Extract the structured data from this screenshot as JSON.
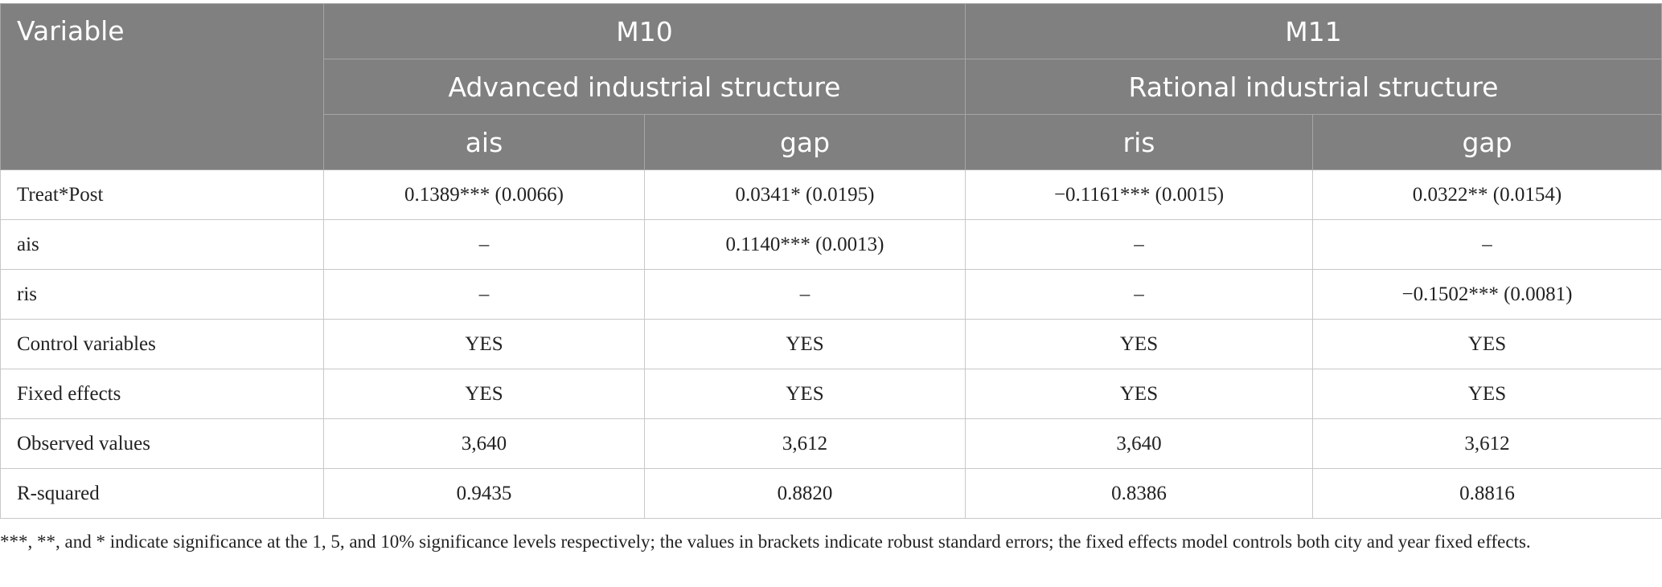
{
  "header": {
    "variable": "Variable",
    "groups": [
      {
        "model": "M10",
        "title": "Advanced industrial structure",
        "columns": [
          "ais",
          "gap"
        ]
      },
      {
        "model": "M11",
        "title": "Rational industrial structure",
        "columns": [
          "ris",
          "gap"
        ]
      }
    ]
  },
  "rows": [
    [
      "Treat*Post",
      "0.1389*** (0.0066)",
      "0.0341* (0.0195)",
      "−0.1161*** (0.0015)",
      "0.0322** (0.0154)"
    ],
    [
      "ais",
      "–",
      "0.1140*** (0.0013)",
      "–",
      "–"
    ],
    [
      "ris",
      "–",
      "–",
      "–",
      "−0.1502*** (0.0081)"
    ],
    [
      "Control variables",
      "YES",
      "YES",
      "YES",
      "YES"
    ],
    [
      "Fixed effects",
      "YES",
      "YES",
      "YES",
      "YES"
    ],
    [
      "Observed values",
      "3,640",
      "3,612",
      "3,640",
      "3,612"
    ],
    [
      "R-squared",
      "0.9435",
      "0.8820",
      "0.8386",
      "0.8816"
    ]
  ],
  "footnote": "***, **, and * indicate significance at the 1, 5, and 10% significance levels respectively; the values in brackets indicate robust standard errors; the fixed effects model controls both city and year fixed effects."
}
